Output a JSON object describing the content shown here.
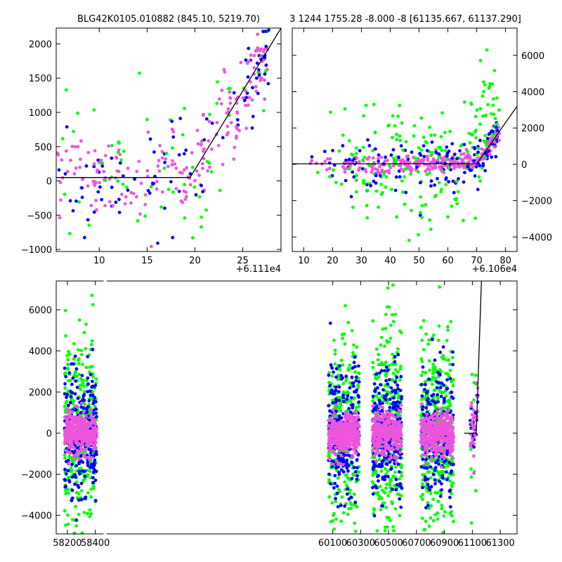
{
  "colors": {
    "green": "#00ff00",
    "blue": "#0000ff",
    "pink": "#ee55dd",
    "model": "#000000",
    "background": "#ffffff"
  },
  "chart_data": [
    {
      "type": "scatter",
      "title": "BLG42K0105.010882 (845.10, 5219.70)",
      "xlabel": "",
      "ylabel": "",
      "x_offset_label": "+6.111e4",
      "xlim": [
        5.5,
        29
      ],
      "ylim": [
        -1030,
        2230
      ],
      "xticks": [
        10,
        15,
        20,
        25
      ],
      "yticks": [
        -1000,
        -500,
        0,
        500,
        1000,
        1500,
        2000
      ],
      "model_line": [
        [
          5.5,
          50
        ],
        [
          19.5,
          50
        ],
        [
          29,
          2230
        ]
      ]
    },
    {
      "type": "scatter",
      "title": "3 1244 1755.28 -8.000 -8 [61135.667, 61137.290]",
      "xlabel": "",
      "ylabel": "",
      "x_offset_label": "+6.106e4",
      "xlim": [
        6,
        84
      ],
      "ylim": [
        -4800,
        7500
      ],
      "xticks": [
        10,
        20,
        30,
        40,
        50,
        60,
        70,
        80
      ],
      "yticks": [
        -4000,
        -2000,
        0,
        2000,
        4000,
        6000
      ],
      "y_axis_side": "right",
      "model_line": [
        [
          6,
          30
        ],
        [
          70,
          30
        ],
        [
          84,
          3200
        ]
      ]
    },
    {
      "type": "scatter",
      "title": "",
      "xlabel": "",
      "ylabel": "",
      "xlim": [
        58120,
        61420
      ],
      "ylim": [
        -4900,
        7400
      ],
      "xticks": [
        58200,
        58400,
        60100,
        60300,
        60500,
        60700,
        60900,
        61100,
        61300
      ],
      "yticks": [
        -4000,
        -2000,
        0,
        2000,
        4000,
        6000
      ],
      "seasons": [
        [
          58180,
          58410
        ],
        [
          60070,
          60290
        ],
        [
          60385,
          60595
        ],
        [
          60730,
          60965
        ],
        [
          61085,
          61140
        ]
      ],
      "model_line": [
        [
          61040,
          0
        ],
        [
          61128,
          0
        ],
        [
          61165,
          7400
        ]
      ]
    }
  ]
}
